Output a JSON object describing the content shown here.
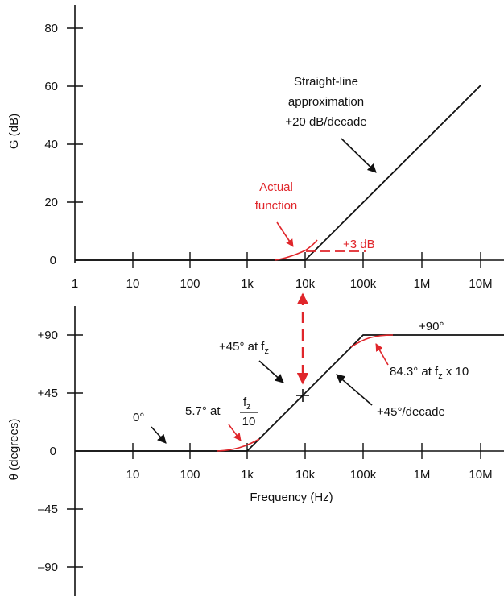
{
  "colors": {
    "axis": "#111111",
    "approx": "#111111",
    "actual": "#e0262b"
  },
  "magnitude_plot": {
    "ylabel": "G (dB)",
    "y_ticks": [
      "0",
      "20",
      "40",
      "60",
      "80"
    ],
    "x_ticks": [
      "1",
      "10",
      "100",
      "1k",
      "10k",
      "100k",
      "1M",
      "10M"
    ],
    "annotations": {
      "straight_line_1": "Straight-line",
      "straight_line_2": "approximation",
      "straight_line_3": "+20 dB/decade",
      "actual_1": "Actual",
      "actual_2": "function",
      "plus3db": "+3 dB"
    }
  },
  "phase_plot": {
    "ylabel": "θ (degrees)",
    "xlabel": "Frequency (Hz)",
    "y_ticks": [
      "+90",
      "+45",
      "0",
      "–45",
      "–90"
    ],
    "x_ticks": [
      "10",
      "100",
      "1k",
      "10k",
      "100k",
      "1M",
      "10M"
    ],
    "annotations": {
      "zero_deg": "0°",
      "plus90": "+90°",
      "at_fz_prefix": "+45° at f",
      "at_fz_sub": "z",
      "deg_per_decade": "+45°/decade",
      "p843_prefix": "84.3° at f",
      "p843_sub": "z",
      "p843_suffix": " x 10",
      "p57_prefix": "5.7° at",
      "p57_num": "f",
      "p57_num_sub": "z",
      "p57_den": "10"
    }
  },
  "chart_data": [
    {
      "type": "line",
      "x_scale": "log",
      "xlim": [
        1,
        100000000
      ],
      "ylabel": "G (dB)",
      "ylim": [
        0,
        80
      ],
      "series": [
        {
          "x": [
            1,
            10000,
            10000000
          ],
          "y": [
            0,
            0,
            60
          ]
        },
        {
          "x": [
            3000,
            10000,
            30000
          ],
          "y": [
            0,
            3,
            10
          ]
        }
      ]
    },
    {
      "type": "line",
      "x_scale": "log",
      "xlim": [
        1,
        100000000
      ],
      "xlabel": "Frequency (Hz)",
      "ylabel": "θ (degrees)",
      "ylim": [
        -90,
        90
      ],
      "series": [
        {
          "x": [
            1,
            1000,
            10000,
            100000,
            100000000
          ],
          "y": [
            0,
            0,
            45,
            90,
            90
          ]
        },
        {
          "x": [
            300,
            1000
          ],
          "y": [
            0,
            5.7
          ]
        },
        {
          "x": [
            100000,
            300000
          ],
          "y": [
            84.3,
            90
          ]
        }
      ]
    }
  ]
}
